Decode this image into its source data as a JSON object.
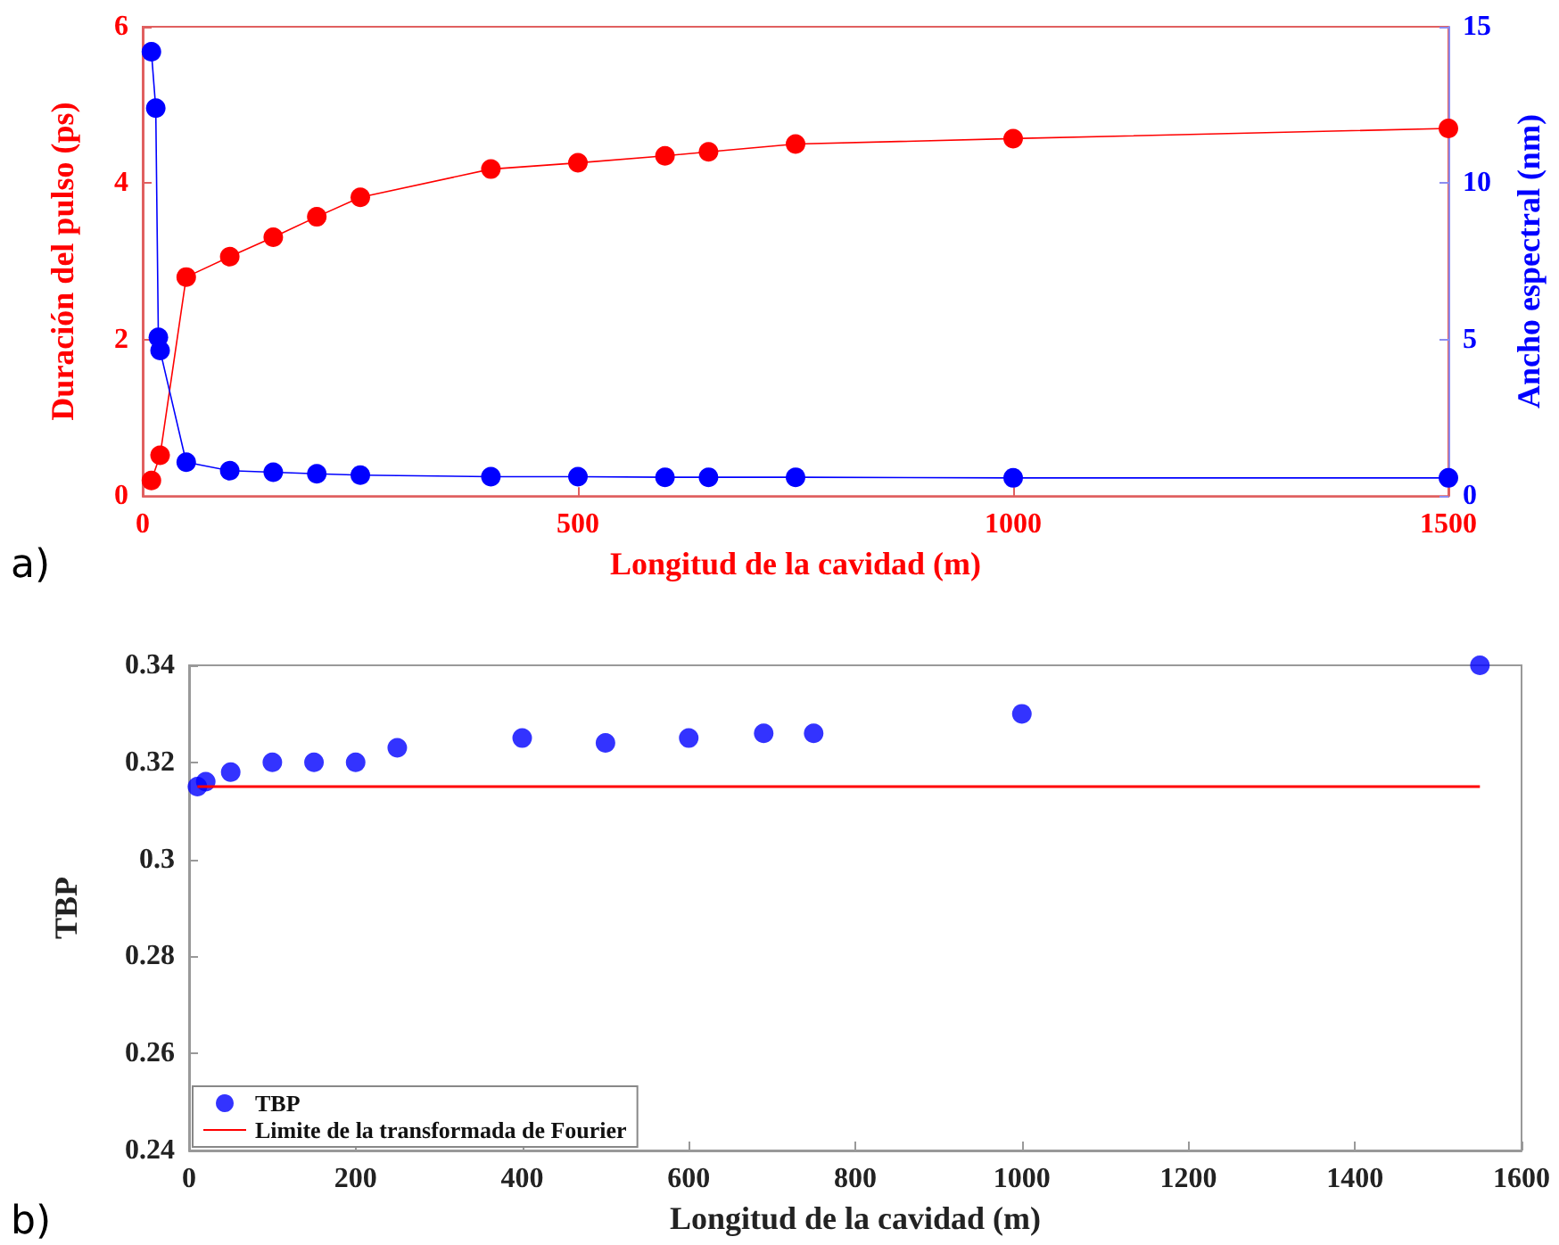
{
  "chart_data": [
    {
      "type": "line",
      "xlabel": "Longitud de la cavidad (m)",
      "ylabel": "Duración del pulso (ps)",
      "y2label": "Ancho espectral (nm)",
      "annotations": [
        "a)"
      ],
      "xlim": [
        0,
        1500
      ],
      "xticks": [
        0,
        500,
        1000,
        1500
      ],
      "ylim": [
        0,
        6
      ],
      "yticks": [
        0,
        2,
        4,
        6
      ],
      "y2lim": [
        0,
        15
      ],
      "y2ticks": [
        0,
        5,
        10,
        15
      ],
      "grid": false,
      "legend": false,
      "marker": "circle",
      "line_style": "solid",
      "series": [
        {
          "color": "#ff0000",
          "x": [
            10,
            20,
            50,
            100,
            150,
            200,
            250,
            400,
            500,
            600,
            650,
            750,
            1000,
            1500
          ],
          "values": [
            0.2,
            0.52,
            2.8,
            3.06,
            3.31,
            3.57,
            3.82,
            4.18,
            4.26,
            4.35,
            4.4,
            4.5,
            4.57,
            4.7
          ]
        },
        {
          "color": "#0000ff",
          "axis": "y2",
          "x": [
            10,
            15,
            18,
            20,
            50,
            100,
            150,
            200,
            250,
            400,
            500,
            600,
            650,
            750,
            1000,
            1500
          ],
          "values": [
            14.2,
            12.4,
            5.07,
            4.65,
            1.08,
            0.81,
            0.76,
            0.71,
            0.67,
            0.62,
            0.62,
            0.6,
            0.6,
            0.6,
            0.58,
            0.58
          ]
        }
      ]
    },
    {
      "type": "scatter",
      "xlabel": "Longitud de la cavidad (m)",
      "ylabel": "TBP",
      "annotations": [
        "b)"
      ],
      "xlim": [
        0,
        1600
      ],
      "xticks": [
        0,
        200,
        400,
        600,
        800,
        1000,
        1200,
        1400,
        1600
      ],
      "ylim": [
        0.24,
        0.34
      ],
      "yticks": [
        0.24,
        0.26,
        0.28,
        0.3,
        0.32,
        0.34
      ],
      "grid": false,
      "legend": "bottom left",
      "series": [
        {
          "name": "TBP",
          "marker": "circle",
          "color": "#0000ff",
          "x": [
            10,
            20,
            50,
            100,
            150,
            200,
            250,
            400,
            500,
            600,
            690,
            750,
            1000,
            1550
          ],
          "values": [
            0.315,
            0.316,
            0.318,
            0.32,
            0.32,
            0.32,
            0.323,
            0.325,
            0.324,
            0.325,
            0.326,
            0.326,
            0.33,
            0.34
          ]
        },
        {
          "name": "Limite de la transformada de Fourier",
          "type": "line",
          "marker": "none",
          "line_style": "solid",
          "color": "#ff0000",
          "x": [
            10,
            1550
          ],
          "values": [
            0.315,
            0.315
          ]
        }
      ]
    }
  ]
}
